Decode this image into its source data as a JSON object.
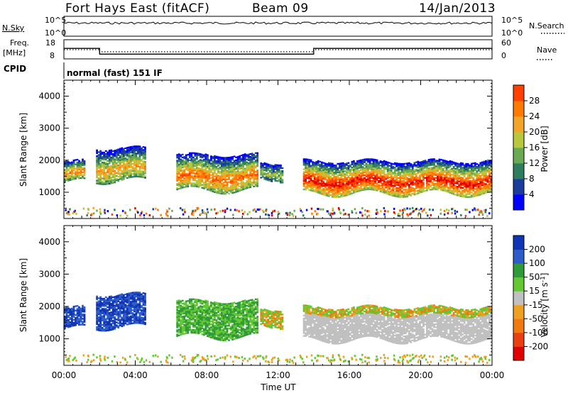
{
  "header": {
    "station": "Fort Hays East (fitACF)",
    "beam": "Beam 09",
    "date": "14/Jan/2013",
    "mode": "normal (fast) 151 IF"
  },
  "side_labels": {
    "nsky": "N.Sky",
    "freq_top": "Freq.",
    "freq_unit": "[MHz]",
    "cpid": "CPID",
    "nsearch": "N.Search",
    "nave": "Nave"
  },
  "axis_labels": {
    "exp5": "10^5",
    "exp0": "10^0",
    "freq_18": "18",
    "freq_8": "8",
    "nave_60": "60",
    "nave_0": "0"
  },
  "colors": {
    "power": [
      "#0000ff",
      "#1c3c9c",
      "#2e7d5e",
      "#6aaa55",
      "#b8c83a",
      "#f2a628",
      "#ff7a00",
      "#ff4000",
      "#e00000"
    ],
    "velocity_pos": [
      "#1034b4",
      "#2e5cc8",
      "#2f9a3a",
      "#64c832"
    ],
    "velocity_ground": "#c0c0c0",
    "velocity_neg": [
      "#f0a020",
      "#f07a10",
      "#e84010",
      "#e00000"
    ]
  },
  "chart_data": [
    {
      "type": "line",
      "name_label": "N.Sky",
      "x": [
        0,
        24
      ],
      "ylim_labels": [
        "10^0",
        "10^5"
      ],
      "note": "noise level trace"
    },
    {
      "type": "line",
      "x": [
        0,
        2,
        2,
        14,
        14,
        24
      ],
      "values": [
        13.5,
        13.5,
        10.5,
        10.5,
        13.5,
        13.5
      ],
      "ylabel": "Freq. [MHz]",
      "ylim": [
        8,
        18
      ]
    },
    {
      "type": "heatmap",
      "title": "",
      "xlabel": "",
      "ylabel": "Slant Range [km]",
      "colorbar_label": "Power [dB]",
      "colorbar_ticks": [
        4,
        8,
        12,
        16,
        20,
        24,
        28
      ],
      "y_ticks": [
        1000,
        2000,
        3000,
        4000
      ],
      "ylim": [
        180,
        4500
      ],
      "xlim": [
        0,
        24
      ],
      "echo_regions": [
        {
          "t0": 0.0,
          "t1": 1.2,
          "low": 1300,
          "high": 1950,
          "peak_db": 22
        },
        {
          "t0": 1.8,
          "t1": 4.6,
          "low": 1350,
          "high": 2350,
          "peak_db": 20
        },
        {
          "t0": 6.3,
          "t1": 10.8,
          "low": 1050,
          "high": 2150,
          "peak_db": 24
        },
        {
          "t0": 11.0,
          "t1": 12.2,
          "low": 1400,
          "high": 1900,
          "peak_db": 14
        },
        {
          "t0": 13.4,
          "t1": 24.0,
          "low": 950,
          "high": 1950,
          "peak_db": 30
        }
      ]
    },
    {
      "type": "heatmap",
      "title": "",
      "xlabel": "Time UT",
      "ylabel": "Slant Range [km]",
      "colorbar_label": "Velocity [m s^-1]",
      "colorbar_ticks": [
        "200",
        "100",
        "50",
        "15",
        "-15",
        "-50",
        "-100",
        "-200"
      ],
      "x_ticks": [
        "00:00",
        "04:00",
        "08:00",
        "12:00",
        "16:00",
        "20:00",
        "00:00"
      ],
      "y_ticks": [
        1000,
        2000,
        3000,
        4000
      ],
      "ylim": [
        180,
        4500
      ],
      "xlim": [
        0,
        24
      ]
    }
  ]
}
